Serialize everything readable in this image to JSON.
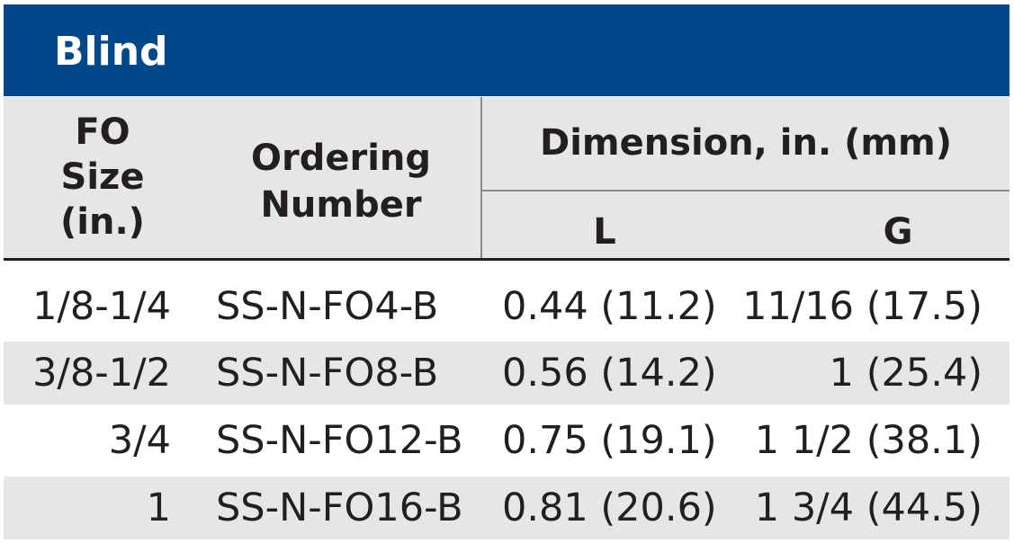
{
  "title": "Blind",
  "headers": {
    "fo_size": [
      "FO",
      "Size",
      "(in.)"
    ],
    "ordering_number": [
      "Ordering",
      "Number"
    ],
    "dimension": "Dimension, in. (mm)",
    "l": "L",
    "g": "G"
  },
  "rows": [
    {
      "size": "1/8-1/4",
      "ordering": "SS-N-FO4-B",
      "l": "0.44 (11.2)",
      "g": "11/16 (17.5)"
    },
    {
      "size": "3/8-1/2",
      "ordering": "SS-N-FO8-B",
      "l": "0.56 (14.2)",
      "g": "1 (25.4)"
    },
    {
      "size": "3/4",
      "ordering": "SS-N-FO12-B",
      "l": "0.75 (19.1)",
      "g": "1 1/2 (38.1)"
    },
    {
      "size": "1",
      "ordering": "SS-N-FO16-B",
      "l": "0.81 (20.6)",
      "g": "1 3/4 (44.5)"
    }
  ],
  "colors": {
    "title_bg": "#00488a",
    "header_bg": "#e5e6e7",
    "alt_row_bg": "#e5e6e7"
  }
}
